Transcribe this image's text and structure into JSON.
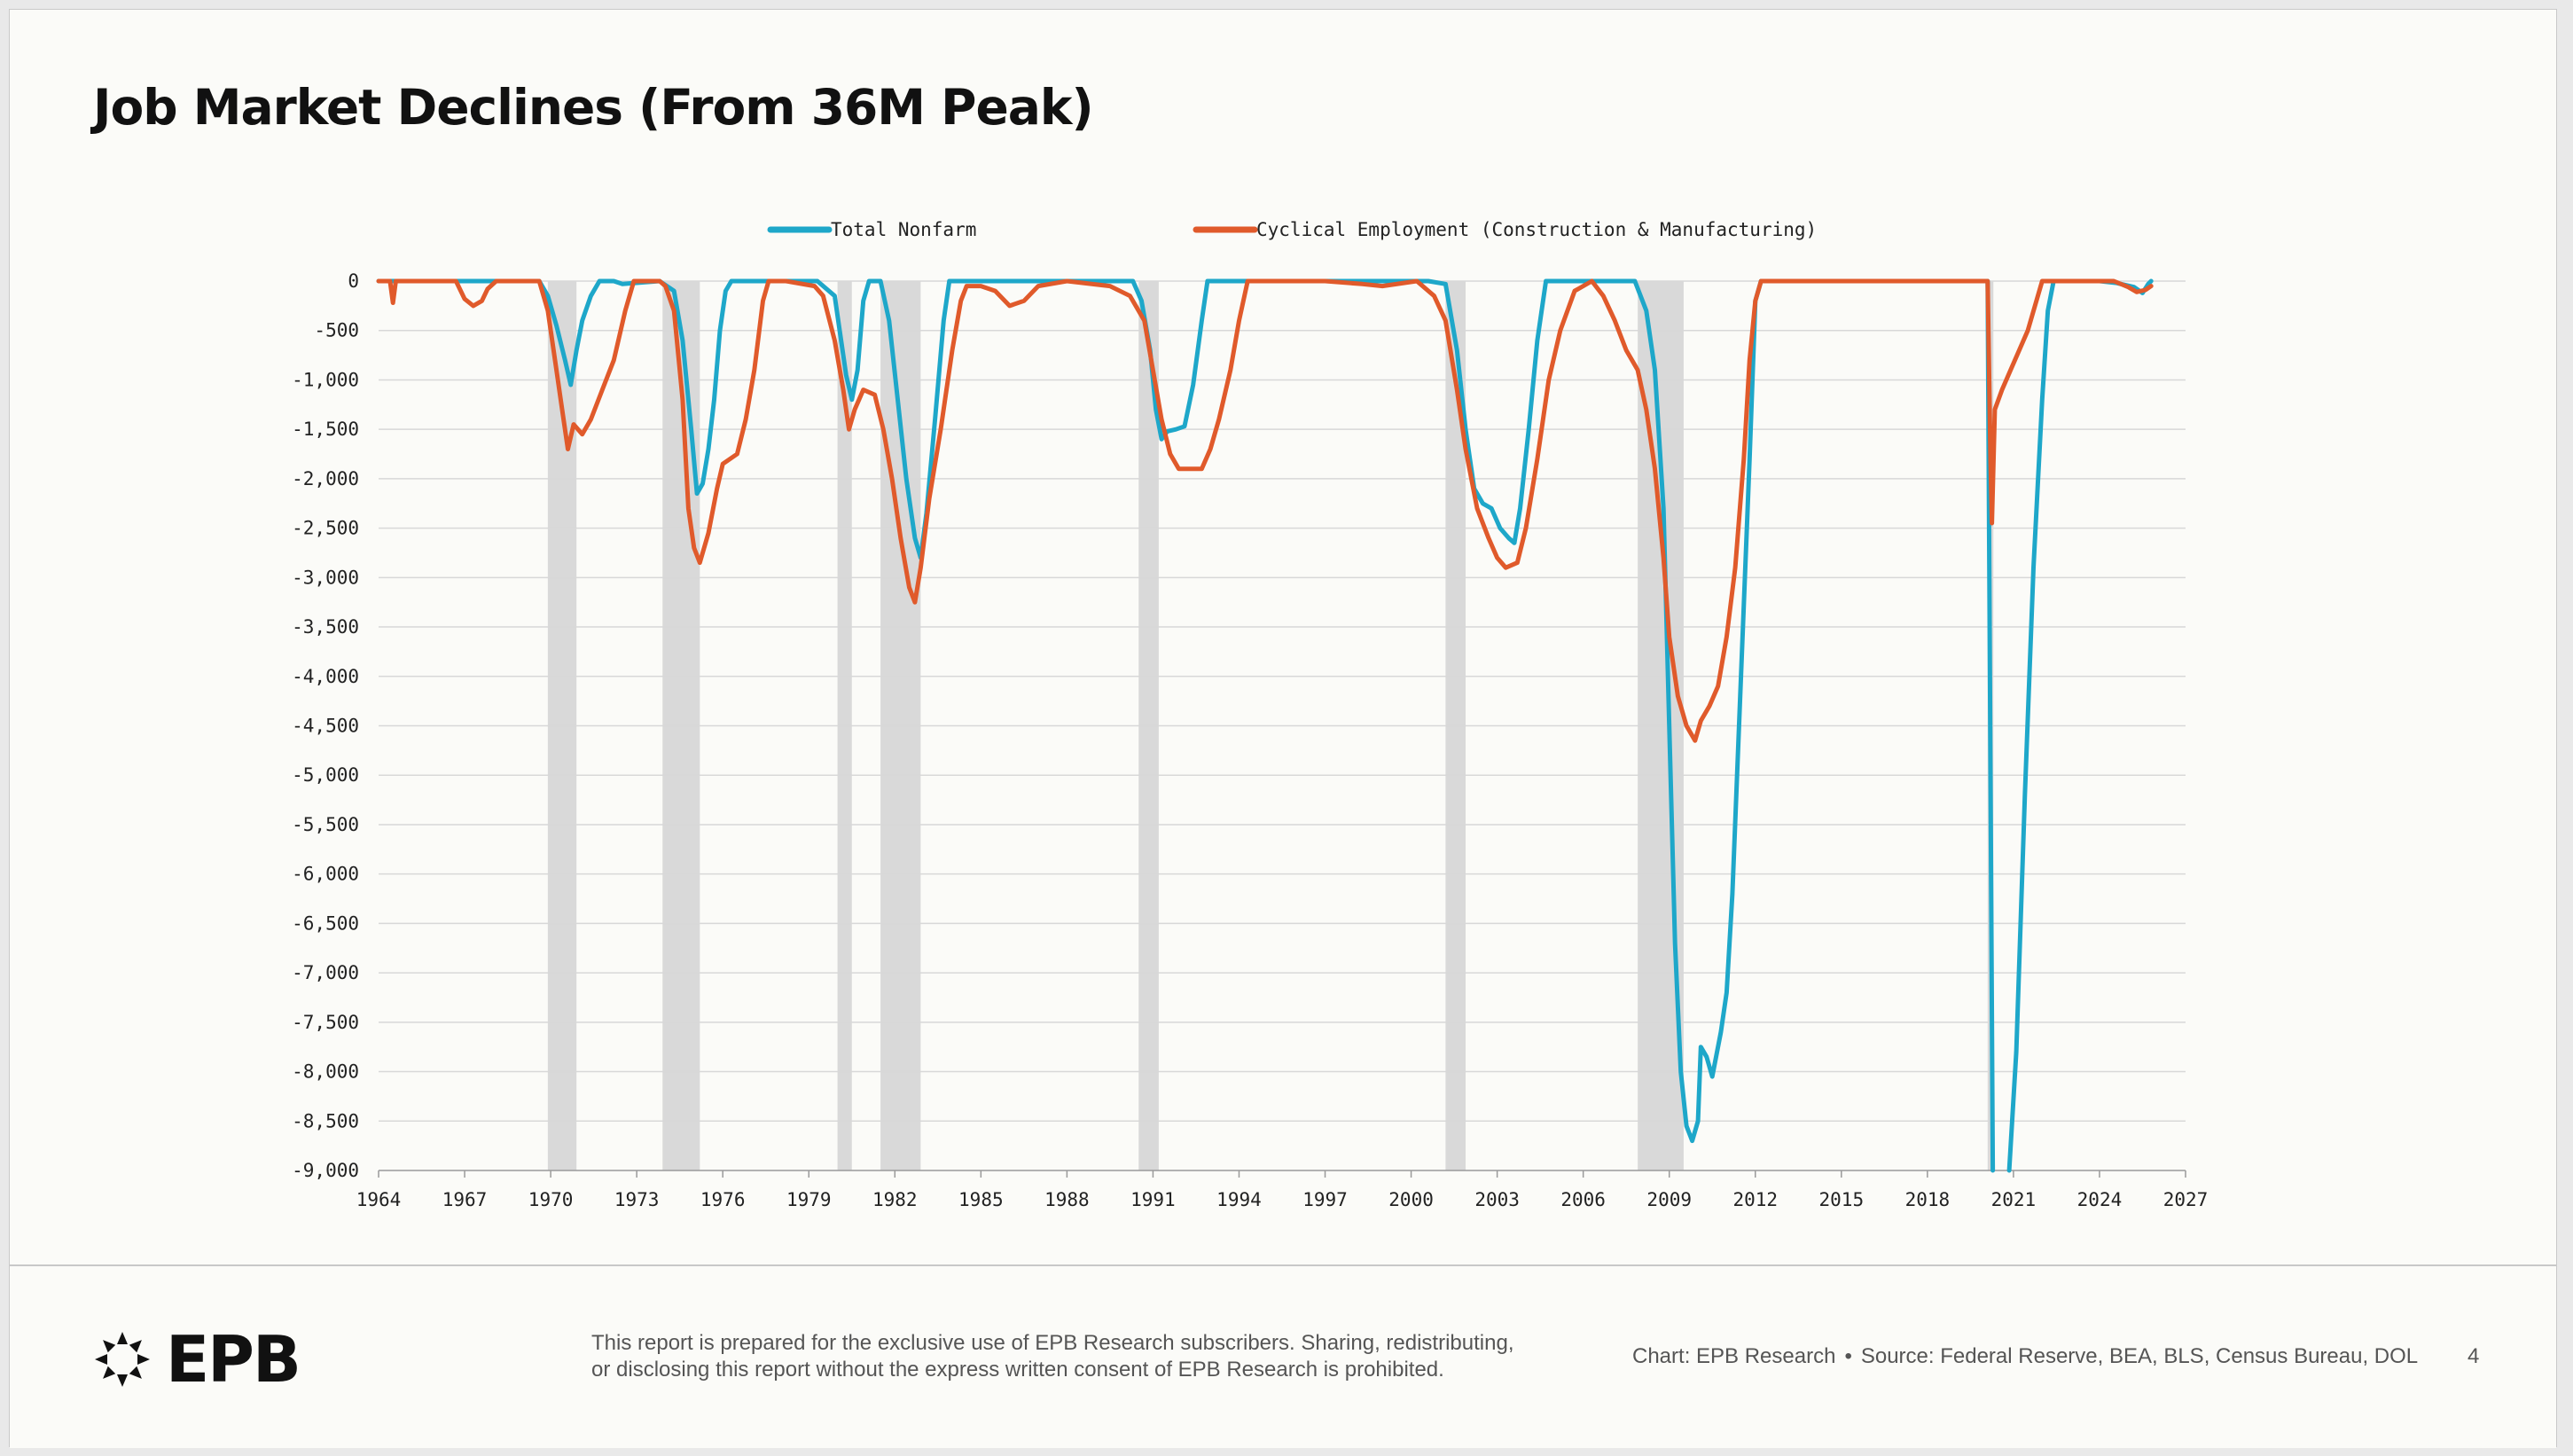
{
  "page": {
    "title": "Job Market Declines (From 36M Peak)"
  },
  "footer": {
    "logo_text": "EPB",
    "disclaimer_line1": "This report is prepared for the exclusive use of EPB Research subscribers. Sharing, redistributing,",
    "disclaimer_line2": "or disclosing this report without the express written consent of EPB Research is prohibited.",
    "chart_credit": "Chart: EPB Research",
    "separator": "•",
    "source": "Source: Federal Reserve, BEA, BLS, Census Bureau, DOL",
    "page_number": "4"
  },
  "colors": {
    "total_nonfarm": "#1ea7c9",
    "cyclical": "#e05a2b",
    "recession": "#d9d9d9",
    "grid": "#d8d8d8"
  },
  "chart_data": {
    "type": "line",
    "title": "",
    "xlabel": "",
    "ylabel": "",
    "xlim": [
      1964,
      2027
    ],
    "ylim": [
      -9000,
      0
    ],
    "x_ticks": [
      "1964",
      "1967",
      "1970",
      "1973",
      "1976",
      "1979",
      "1982",
      "1985",
      "1988",
      "1991",
      "1994",
      "1997",
      "2000",
      "2003",
      "2006",
      "2009",
      "2012",
      "2015",
      "2018",
      "2021",
      "2024",
      "2027"
    ],
    "y_ticks": [
      "0",
      "-500",
      "-1,000",
      "-1,500",
      "-2,000",
      "-2,500",
      "-3,000",
      "-3,500",
      "-4,000",
      "-4,500",
      "-5,000",
      "-5,500",
      "-6,000",
      "-6,500",
      "-7,000",
      "-7,500",
      "-8,000",
      "-8,500",
      "-9,000"
    ],
    "grid": true,
    "legend_position": "top",
    "recessions": [
      [
        1969.9,
        1970.9
      ],
      [
        1973.9,
        1975.2
      ],
      [
        1980.0,
        1980.5
      ],
      [
        1981.5,
        1982.9
      ],
      [
        1990.5,
        1991.2
      ],
      [
        2001.2,
        2001.9
      ],
      [
        2007.9,
        2009.5
      ],
      [
        2020.1,
        2020.3
      ]
    ],
    "series": [
      {
        "name": "Total Nonfarm",
        "points": [
          [
            1964,
            0
          ],
          [
            1969.6,
            0
          ],
          [
            1969.9,
            -150
          ],
          [
            1970.2,
            -450
          ],
          [
            1970.5,
            -800
          ],
          [
            1970.7,
            -1050
          ],
          [
            1970.9,
            -700
          ],
          [
            1971.1,
            -400
          ],
          [
            1971.4,
            -150
          ],
          [
            1971.7,
            0
          ],
          [
            1972.2,
            0
          ],
          [
            1972.5,
            -30
          ],
          [
            1973.8,
            0
          ],
          [
            1974.3,
            -100
          ],
          [
            1974.6,
            -600
          ],
          [
            1974.9,
            -1500
          ],
          [
            1975.1,
            -2150
          ],
          [
            1975.3,
            -2050
          ],
          [
            1975.5,
            -1700
          ],
          [
            1975.7,
            -1200
          ],
          [
            1975.9,
            -500
          ],
          [
            1976.1,
            -100
          ],
          [
            1976.3,
            0
          ],
          [
            1979.3,
            0
          ],
          [
            1979.9,
            -150
          ],
          [
            1980.3,
            -950
          ],
          [
            1980.5,
            -1200
          ],
          [
            1980.7,
            -900
          ],
          [
            1980.9,
            -200
          ],
          [
            1981.1,
            0
          ],
          [
            1981.5,
            0
          ],
          [
            1981.8,
            -400
          ],
          [
            1982.1,
            -1200
          ],
          [
            1982.4,
            -2000
          ],
          [
            1982.7,
            -2600
          ],
          [
            1982.9,
            -2800
          ],
          [
            1983.1,
            -2350
          ],
          [
            1983.4,
            -1400
          ],
          [
            1983.7,
            -400
          ],
          [
            1983.9,
            0
          ],
          [
            1990.3,
            0
          ],
          [
            1990.6,
            -200
          ],
          [
            1990.9,
            -700
          ],
          [
            1991.1,
            -1300
          ],
          [
            1991.3,
            -1600
          ],
          [
            1991.5,
            -1520
          ],
          [
            1991.8,
            -1500
          ],
          [
            1992.1,
            -1470
          ],
          [
            1992.4,
            -1050
          ],
          [
            1992.7,
            -400
          ],
          [
            1992.9,
            0
          ],
          [
            2000.6,
            0
          ],
          [
            2001.2,
            -30
          ],
          [
            2001.6,
            -700
          ],
          [
            2001.9,
            -1500
          ],
          [
            2002.2,
            -2100
          ],
          [
            2002.5,
            -2250
          ],
          [
            2002.8,
            -2300
          ],
          [
            2003.1,
            -2500
          ],
          [
            2003.4,
            -2600
          ],
          [
            2003.6,
            -2650
          ],
          [
            2003.8,
            -2300
          ],
          [
            2004.1,
            -1500
          ],
          [
            2004.4,
            -600
          ],
          [
            2004.7,
            0
          ],
          [
            2007.8,
            0
          ],
          [
            2008.2,
            -300
          ],
          [
            2008.5,
            -900
          ],
          [
            2008.8,
            -2300
          ],
          [
            2009.0,
            -4500
          ],
          [
            2009.2,
            -6700
          ],
          [
            2009.4,
            -8000
          ],
          [
            2009.6,
            -8550
          ],
          [
            2009.8,
            -8700
          ],
          [
            2010.0,
            -8500
          ],
          [
            2010.1,
            -7750
          ],
          [
            2010.3,
            -7850
          ],
          [
            2010.5,
            -8050
          ],
          [
            2010.8,
            -7600
          ],
          [
            2011.0,
            -7200
          ],
          [
            2011.2,
            -6200
          ],
          [
            2011.5,
            -4000
          ],
          [
            2011.8,
            -1800
          ],
          [
            2012.0,
            -200
          ],
          [
            2012.2,
            0
          ],
          [
            2020.1,
            0
          ],
          [
            2020.28,
            -9000
          ]
        ],
        "points_2": [
          [
            2020.85,
            -9000
          ],
          [
            2021.1,
            -7800
          ],
          [
            2021.4,
            -5200
          ],
          [
            2021.7,
            -2900
          ],
          [
            2022.0,
            -1200
          ],
          [
            2022.2,
            -300
          ],
          [
            2022.4,
            0
          ],
          [
            2024.0,
            0
          ],
          [
            2024.6,
            -20
          ],
          [
            2025.2,
            -60
          ],
          [
            2025.5,
            -120
          ],
          [
            2025.7,
            -30
          ],
          [
            2025.8,
            0
          ]
        ]
      },
      {
        "name": "Cyclical Employment (Construction & Manufacturing)",
        "points": [
          [
            1964,
            0
          ],
          [
            1964.4,
            0
          ],
          [
            1964.5,
            -220
          ],
          [
            1964.6,
            0
          ],
          [
            1966.7,
            0
          ],
          [
            1967.0,
            -180
          ],
          [
            1967.3,
            -250
          ],
          [
            1967.6,
            -200
          ],
          [
            1967.8,
            -80
          ],
          [
            1968.1,
            0
          ],
          [
            1969.6,
            0
          ],
          [
            1969.9,
            -300
          ],
          [
            1970.2,
            -900
          ],
          [
            1970.4,
            -1300
          ],
          [
            1970.6,
            -1700
          ],
          [
            1970.8,
            -1450
          ],
          [
            1971.1,
            -1550
          ],
          [
            1971.4,
            -1400
          ],
          [
            1971.8,
            -1100
          ],
          [
            1972.2,
            -800
          ],
          [
            1972.6,
            -300
          ],
          [
            1972.9,
            0
          ],
          [
            1973.8,
            0
          ],
          [
            1974.0,
            -50
          ],
          [
            1974.3,
            -300
          ],
          [
            1974.6,
            -1200
          ],
          [
            1974.8,
            -2300
          ],
          [
            1975.0,
            -2700
          ],
          [
            1975.2,
            -2850
          ],
          [
            1975.5,
            -2550
          ],
          [
            1975.8,
            -2100
          ],
          [
            1976.0,
            -1850
          ],
          [
            1976.5,
            -1750
          ],
          [
            1976.8,
            -1400
          ],
          [
            1977.1,
            -900
          ],
          [
            1977.4,
            -200
          ],
          [
            1977.6,
            0
          ],
          [
            1978.2,
            0
          ],
          [
            1979.2,
            -50
          ],
          [
            1979.5,
            -150
          ],
          [
            1979.9,
            -600
          ],
          [
            1980.2,
            -1100
          ],
          [
            1980.4,
            -1500
          ],
          [
            1980.6,
            -1300
          ],
          [
            1980.9,
            -1100
          ],
          [
            1981.3,
            -1150
          ],
          [
            1981.6,
            -1500
          ],
          [
            1981.9,
            -2000
          ],
          [
            1982.2,
            -2600
          ],
          [
            1982.5,
            -3100
          ],
          [
            1982.7,
            -3250
          ],
          [
            1982.9,
            -2900
          ],
          [
            1983.2,
            -2200
          ],
          [
            1983.6,
            -1500
          ],
          [
            1984.0,
            -700
          ],
          [
            1984.3,
            -200
          ],
          [
            1984.5,
            -50
          ],
          [
            1985.0,
            -50
          ],
          [
            1985.5,
            -100
          ],
          [
            1986.0,
            -250
          ],
          [
            1986.5,
            -200
          ],
          [
            1987.0,
            -50
          ],
          [
            1988.0,
            0
          ],
          [
            1989.5,
            -50
          ],
          [
            1990.2,
            -150
          ],
          [
            1990.7,
            -400
          ],
          [
            1991.0,
            -900
          ],
          [
            1991.3,
            -1400
          ],
          [
            1991.6,
            -1750
          ],
          [
            1991.9,
            -1900
          ],
          [
            1992.3,
            -1900
          ],
          [
            1992.7,
            -1900
          ],
          [
            1993.0,
            -1700
          ],
          [
            1993.3,
            -1400
          ],
          [
            1993.7,
            -900
          ],
          [
            1994.0,
            -400
          ],
          [
            1994.3,
            0
          ],
          [
            1997.0,
            0
          ],
          [
            1998.3,
            -30
          ],
          [
            1999.0,
            -50
          ],
          [
            2000.2,
            0
          ],
          [
            2000.8,
            -150
          ],
          [
            2001.2,
            -400
          ],
          [
            2001.6,
            -1100
          ],
          [
            2001.9,
            -1700
          ],
          [
            2002.3,
            -2300
          ],
          [
            2002.7,
            -2600
          ],
          [
            2003.0,
            -2800
          ],
          [
            2003.3,
            -2900
          ],
          [
            2003.7,
            -2850
          ],
          [
            2004.0,
            -2500
          ],
          [
            2004.4,
            -1800
          ],
          [
            2004.8,
            -1000
          ],
          [
            2005.2,
            -500
          ],
          [
            2005.7,
            -100
          ],
          [
            2006.3,
            0
          ],
          [
            2006.7,
            -150
          ],
          [
            2007.1,
            -400
          ],
          [
            2007.5,
            -700
          ],
          [
            2007.9,
            -900
          ],
          [
            2008.2,
            -1300
          ],
          [
            2008.5,
            -1900
          ],
          [
            2008.8,
            -2800
          ],
          [
            2009.0,
            -3600
          ],
          [
            2009.3,
            -4200
          ],
          [
            2009.6,
            -4500
          ],
          [
            2009.9,
            -4650
          ],
          [
            2010.1,
            -4450
          ],
          [
            2010.4,
            -4300
          ],
          [
            2010.7,
            -4100
          ],
          [
            2011.0,
            -3600
          ],
          [
            2011.3,
            -2900
          ],
          [
            2011.6,
            -1800
          ],
          [
            2011.8,
            -800
          ],
          [
            2012.0,
            -200
          ],
          [
            2012.2,
            0
          ],
          [
            2020.1,
            0
          ],
          [
            2020.2,
            -1800
          ],
          [
            2020.25,
            -2450
          ],
          [
            2020.35,
            -1300
          ],
          [
            2020.6,
            -1100
          ],
          [
            2020.9,
            -900
          ],
          [
            2021.2,
            -700
          ],
          [
            2021.5,
            -500
          ],
          [
            2021.8,
            -200
          ],
          [
            2022.0,
            0
          ],
          [
            2024.5,
            0
          ],
          [
            2025.0,
            -60
          ],
          [
            2025.3,
            -110
          ],
          [
            2025.6,
            -90
          ],
          [
            2025.8,
            -50
          ]
        ]
      }
    ]
  }
}
